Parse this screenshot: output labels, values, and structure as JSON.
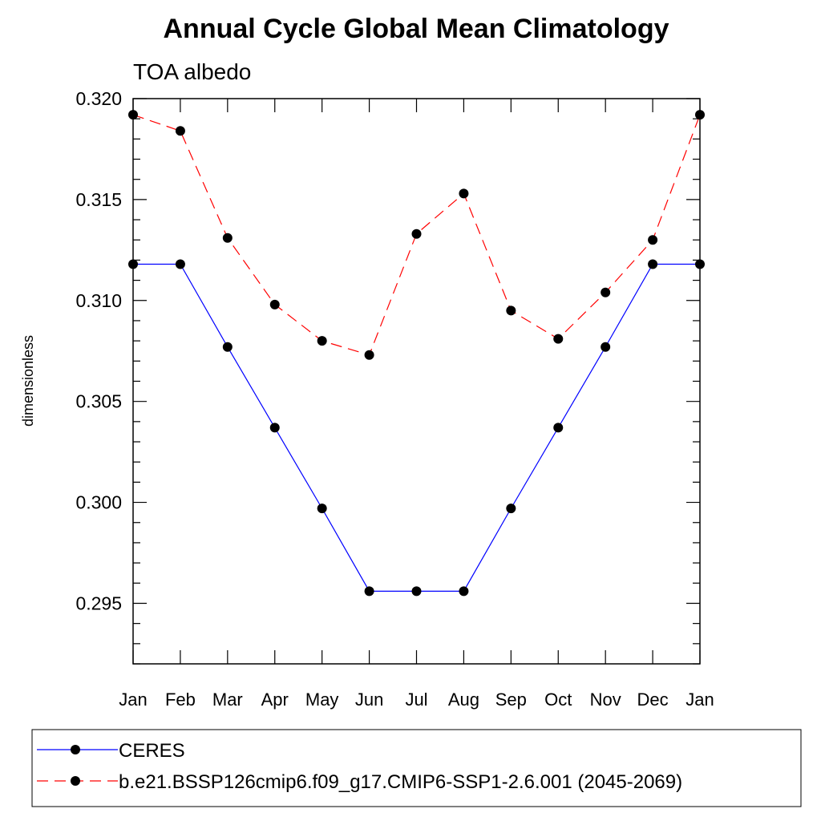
{
  "chart_data": {
    "type": "line",
    "title": "Annual Cycle Global Mean Climatology",
    "subtitle": "TOA albedo",
    "ylabel": "dimensionless",
    "xlabel": "",
    "categories": [
      "Jan",
      "Feb",
      "Mar",
      "Apr",
      "May",
      "Jun",
      "Jul",
      "Aug",
      "Sep",
      "Oct",
      "Nov",
      "Dec",
      "Jan"
    ],
    "ylim": [
      0.292,
      0.32
    ],
    "yticks": [
      "0.320",
      "0.315",
      "0.310",
      "0.305",
      "0.300",
      "0.295"
    ],
    "ytick_values": [
      0.32,
      0.315,
      0.31,
      0.305,
      0.3,
      0.295
    ],
    "grid": false,
    "legend_position": "bottom",
    "series": [
      {
        "name": "CERES",
        "color": "#0000ff",
        "line_style": "solid",
        "marker": "filled-circle",
        "values": [
          0.3118,
          0.3118,
          0.3077,
          0.3037,
          0.2997,
          0.2956,
          0.2956,
          0.2956,
          0.2997,
          0.3037,
          0.3077,
          0.3118,
          0.3118
        ]
      },
      {
        "name": "b.e21.BSSP126cmip6.f09_g17.CMIP6-SSP1-2.6.001 (2045-2069)",
        "color": "#ff0000",
        "line_style": "dashed",
        "marker": "filled-circle",
        "values": [
          0.3192,
          0.3184,
          0.3131,
          0.3098,
          0.308,
          0.3073,
          0.3133,
          0.3153,
          0.3095,
          0.3081,
          0.3104,
          0.313,
          0.3192
        ]
      }
    ]
  }
}
